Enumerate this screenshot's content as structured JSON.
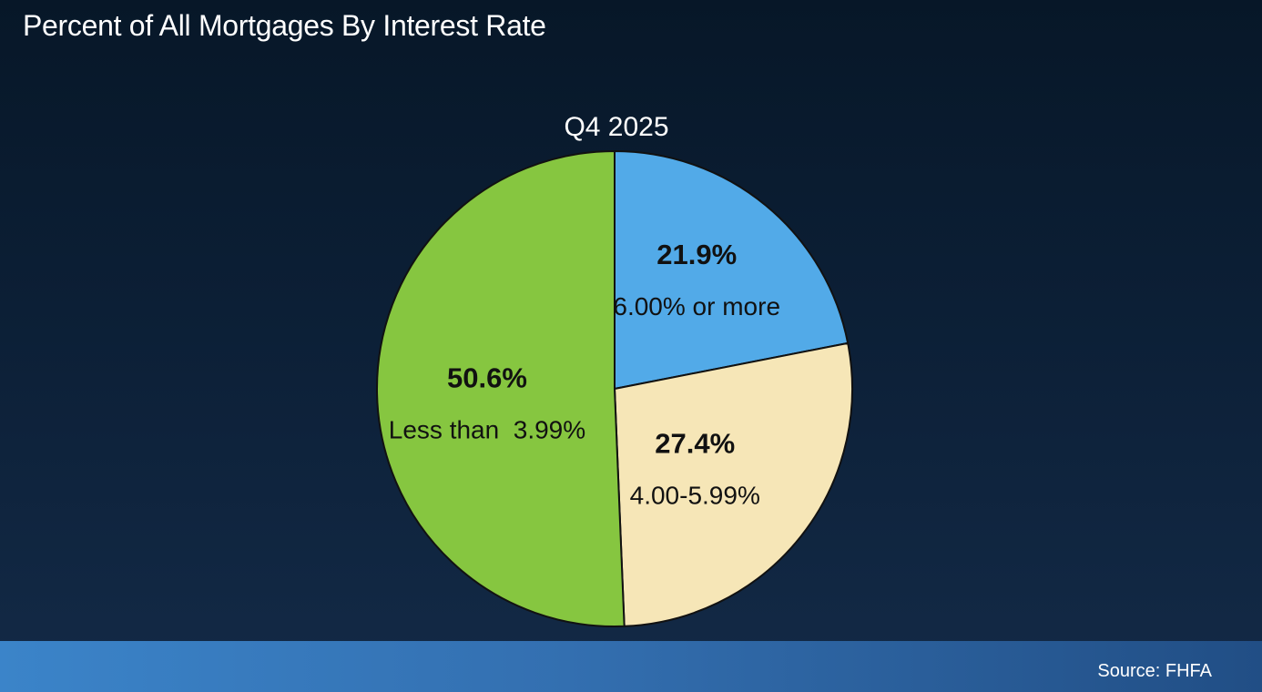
{
  "page": {
    "title": "Percent of All Mortgages By Interest Rate",
    "source": "Source: FHFA"
  },
  "chart_data": {
    "type": "pie",
    "subtitle": "Q4 2025",
    "slices": [
      {
        "label": "6.00% or more",
        "value": 21.9,
        "value_label": "21.9%",
        "color": "#52aae8"
      },
      {
        "label": "4.00-5.99%",
        "value": 27.4,
        "value_label": "27.4%",
        "color": "#f6e6b7"
      },
      {
        "label": "Less than  3.99%",
        "value": 50.6,
        "value_label": "50.6%",
        "color": "#86c640"
      }
    ],
    "start_angle": "12 o'clock",
    "direction": "clockwise",
    "legend": "none (labels inside slices)"
  },
  "colors": {
    "background": "#0d2139",
    "footer": "#336fb0",
    "outline": "#111111",
    "text": "#ffffff"
  }
}
